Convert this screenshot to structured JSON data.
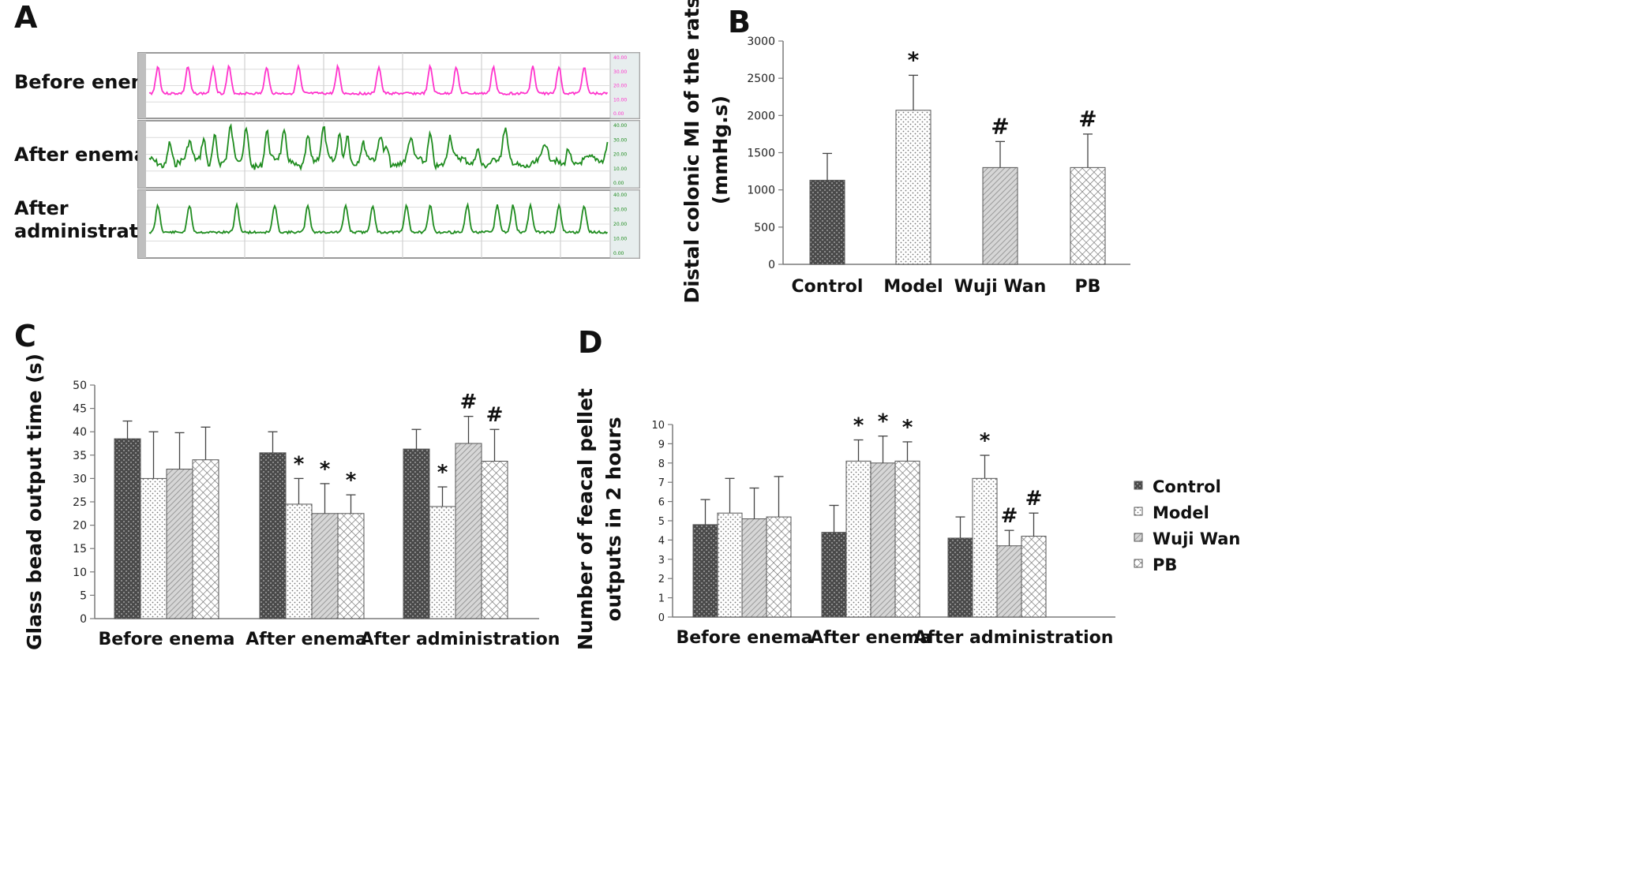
{
  "panels": {
    "a": "A",
    "b": "B",
    "c": "C",
    "d": "D"
  },
  "traces": {
    "labels": [
      "Before enema",
      "After enema",
      "After",
      "administration"
    ],
    "scale": [
      "40.00",
      "30.00",
      "20.00",
      "10.00",
      "0.00"
    ],
    "colors": [
      "#ff33cc",
      "#1f8c1f",
      "#1f8c1f"
    ]
  },
  "legend": [
    "Control",
    "Model",
    "Wuji Wan",
    "PB"
  ],
  "chart_data": [
    {
      "id": "B",
      "type": "bar",
      "categories": [
        "Control",
        "Model",
        "Wuji Wan",
        "PB"
      ],
      "values": [
        1130,
        2070,
        1300,
        1300
      ],
      "errors": [
        360,
        470,
        350,
        450
      ],
      "marks": [
        "",
        "*",
        "#",
        "#"
      ],
      "ylabel_lines": [
        "Distal colonic MI of the rats",
        "(mmHg.s)"
      ],
      "ylim": [
        0,
        3000
      ],
      "yticks": [
        0,
        500,
        1000,
        1500,
        2000,
        2500,
        3000
      ]
    },
    {
      "id": "C",
      "type": "bar",
      "categories": [
        "Before enema",
        "After enema",
        "After administration"
      ],
      "series": [
        {
          "name": "Control",
          "values": [
            38.5,
            35.5,
            36.3
          ],
          "errors": [
            3.8,
            4.5,
            4.2
          ]
        },
        {
          "name": "Model",
          "values": [
            30,
            24.5,
            24
          ],
          "errors": [
            10,
            5.5,
            4.2
          ]
        },
        {
          "name": "Wuji Wan",
          "values": [
            32,
            22.5,
            37.5
          ],
          "errors": [
            7.8,
            6.4,
            5.8
          ]
        },
        {
          "name": "PB",
          "values": [
            34,
            22.5,
            33.7
          ],
          "errors": [
            7,
            4,
            6.8
          ]
        }
      ],
      "marks": [
        [
          "",
          "",
          "",
          ""
        ],
        [
          "",
          "*",
          "*",
          "*"
        ],
        [
          "",
          "*",
          "#",
          "#"
        ]
      ],
      "ylabel_lines": [
        "Glass bead output time (s)"
      ],
      "ylim": [
        0,
        50
      ],
      "yticks": [
        0,
        5,
        10,
        15,
        20,
        25,
        30,
        35,
        40,
        45,
        50
      ]
    },
    {
      "id": "D",
      "type": "bar",
      "categories": [
        "Before enema",
        "After enema",
        "After administration"
      ],
      "series": [
        {
          "name": "Control",
          "values": [
            4.8,
            4.4,
            4.1
          ],
          "errors": [
            1.3,
            1.4,
            1.1
          ]
        },
        {
          "name": "Model",
          "values": [
            5.4,
            8.1,
            7.2
          ],
          "errors": [
            1.8,
            1.1,
            1.2
          ]
        },
        {
          "name": "Wuji Wan",
          "values": [
            5.1,
            8.0,
            3.7
          ],
          "errors": [
            1.6,
            1.4,
            0.8
          ]
        },
        {
          "name": "PB",
          "values": [
            5.2,
            8.1,
            4.2
          ],
          "errors": [
            2.1,
            1.0,
            1.2
          ]
        }
      ],
      "marks": [
        [
          "",
          "",
          "",
          ""
        ],
        [
          "",
          "*",
          "*",
          "*"
        ],
        [
          "",
          "*",
          "#",
          "#"
        ]
      ],
      "ylabel_lines": [
        "Number of feacal pellet",
        "outputs in 2 hours"
      ],
      "ylim": [
        0,
        10
      ],
      "yticks": [
        0,
        1,
        2,
        3,
        4,
        5,
        6,
        7,
        8,
        9,
        10
      ]
    }
  ]
}
